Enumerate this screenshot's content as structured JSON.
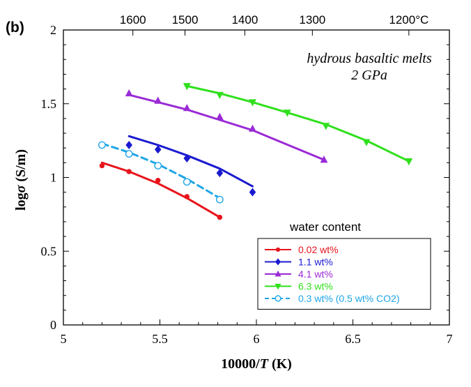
{
  "chart_data": {
    "type": "scatter",
    "panel_label": "(b)",
    "annotation": [
      "hydrous basaltic melts",
      "2 GPa"
    ],
    "xlabel": "10000/T (K)",
    "ylabel": "logσ (S/m)",
    "xlim": [
      5,
      7
    ],
    "ylim": [
      0,
      2
    ],
    "x_ticks": [
      "5",
      "5.5",
      "6",
      "6.5",
      "7"
    ],
    "y_ticks": [
      "0",
      "0.5",
      "1",
      "1.5",
      "2"
    ],
    "top_ticks": [
      {
        "label": "1600",
        "x": 5.36
      },
      {
        "label": "1500",
        "x": 5.63
      },
      {
        "label": "1400",
        "x": 5.94
      },
      {
        "label": "1300",
        "x": 6.29
      },
      {
        "label": "1200°C",
        "x": 6.79
      }
    ],
    "legend_title": "water content",
    "legend_position": "bottom-right",
    "series": [
      {
        "name": "0.02 wt%",
        "color": "#e8141c",
        "marker": "circle",
        "dashed": false,
        "points": [
          [
            5.2,
            1.08
          ],
          [
            5.34,
            1.04
          ],
          [
            5.49,
            0.98
          ],
          [
            5.64,
            0.87
          ],
          [
            5.81,
            0.73
          ]
        ],
        "fit": [
          [
            5.2,
            1.1
          ],
          [
            5.34,
            1.04
          ],
          [
            5.49,
            0.96
          ],
          [
            5.64,
            0.86
          ],
          [
            5.81,
            0.73
          ]
        ]
      },
      {
        "name": "1.1 wt%",
        "color": "#1a1ad0",
        "marker": "diamond",
        "dashed": false,
        "points": [
          [
            5.34,
            1.22
          ],
          [
            5.49,
            1.19
          ],
          [
            5.64,
            1.13
          ],
          [
            5.81,
            1.03
          ],
          [
            5.98,
            0.9
          ]
        ],
        "fit": [
          [
            5.34,
            1.28
          ],
          [
            5.49,
            1.22
          ],
          [
            5.64,
            1.15
          ],
          [
            5.81,
            1.06
          ],
          [
            5.98,
            0.94
          ]
        ]
      },
      {
        "name": "4.1 wt%",
        "color": "#9a2ad6",
        "marker": "triangle-up",
        "dashed": false,
        "points": [
          [
            5.34,
            1.57
          ],
          [
            5.49,
            1.52
          ],
          [
            5.64,
            1.47
          ],
          [
            5.81,
            1.41
          ],
          [
            5.98,
            1.33
          ],
          [
            6.35,
            1.12
          ]
        ],
        "fit": [
          [
            5.34,
            1.56
          ],
          [
            5.49,
            1.51
          ],
          [
            5.64,
            1.46
          ],
          [
            5.81,
            1.39
          ],
          [
            5.98,
            1.32
          ],
          [
            6.35,
            1.12
          ]
        ]
      },
      {
        "name": "6.3 wt%",
        "color": "#2fe01c",
        "marker": "triangle-down",
        "dashed": false,
        "points": [
          [
            5.64,
            1.62
          ],
          [
            5.81,
            1.56
          ],
          [
            5.98,
            1.51
          ],
          [
            6.16,
            1.44
          ],
          [
            6.36,
            1.35
          ],
          [
            6.57,
            1.24
          ],
          [
            6.79,
            1.11
          ]
        ],
        "fit": [
          [
            5.64,
            1.62
          ],
          [
            5.81,
            1.57
          ],
          [
            5.98,
            1.51
          ],
          [
            6.16,
            1.44
          ],
          [
            6.36,
            1.36
          ],
          [
            6.57,
            1.25
          ],
          [
            6.79,
            1.11
          ]
        ]
      },
      {
        "name": "0.3 wt% (0.5 wt% CO2)",
        "color": "#1ea6e8",
        "marker": "circle-open",
        "dashed": true,
        "points": [
          [
            5.2,
            1.22
          ],
          [
            5.34,
            1.16
          ],
          [
            5.49,
            1.08
          ],
          [
            5.64,
            0.97
          ],
          [
            5.81,
            0.85
          ]
        ],
        "fit": [
          [
            5.2,
            1.23
          ],
          [
            5.34,
            1.17
          ],
          [
            5.49,
            1.09
          ],
          [
            5.64,
            0.99
          ],
          [
            5.81,
            0.86
          ]
        ]
      }
    ]
  }
}
